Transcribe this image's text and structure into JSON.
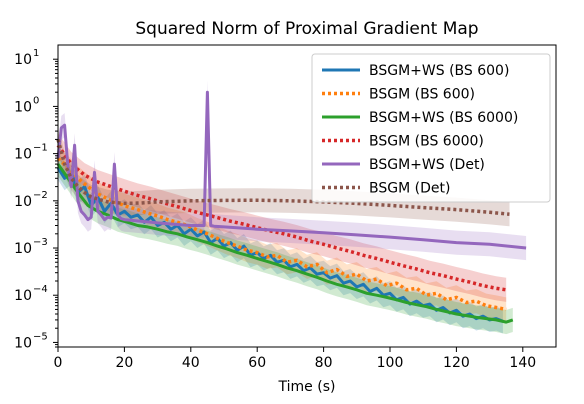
{
  "chart_data": {
    "type": "line",
    "title": "Squared Norm of Proximal Gradient Map",
    "xlabel": "Time (s)",
    "ylabel": "",
    "xlim": [
      0,
      150
    ],
    "ylim": [
      8e-06,
      20
    ],
    "yscale": "log",
    "xticks": [
      0,
      20,
      40,
      60,
      80,
      100,
      120,
      140
    ],
    "xtick_labels": [
      "0",
      "20",
      "40",
      "60",
      "80",
      "100",
      "120",
      "140"
    ],
    "yticks": [
      1e-05,
      0.0001,
      0.001,
      0.01,
      0.1,
      1,
      10
    ],
    "ytick_labels": [
      {
        "base": "10",
        "exp": "−5"
      },
      {
        "base": "10",
        "exp": "−4"
      },
      {
        "base": "10",
        "exp": "−3"
      },
      {
        "base": "10",
        "exp": "−2"
      },
      {
        "base": "10",
        "exp": "−1"
      },
      {
        "base": "10",
        "exp": "0"
      },
      {
        "base": "10",
        "exp": "1"
      }
    ],
    "grid": false,
    "legend": "top-right",
    "series": [
      {
        "name": "BSGM+WS (BS 600)",
        "color": "#1f77b4",
        "style": "solid",
        "x": [
          0,
          2,
          4,
          6,
          8,
          10,
          12,
          14,
          16,
          18,
          20,
          22,
          24,
          26,
          28,
          30,
          32,
          34,
          36,
          38,
          40,
          42,
          44,
          46,
          48,
          50,
          52,
          54,
          56,
          58,
          60,
          62,
          64,
          66,
          68,
          70,
          72,
          74,
          76,
          78,
          80,
          82,
          84,
          86,
          88,
          90,
          92,
          94,
          96,
          98,
          100,
          102,
          104,
          106,
          108,
          110,
          112,
          114,
          116,
          118,
          120,
          122,
          124,
          126,
          128,
          130,
          132,
          134
        ],
        "y": [
          0.05,
          0.03,
          0.04,
          0.015,
          0.02,
          0.008,
          0.012,
          0.006,
          0.009,
          0.005,
          0.006,
          0.0045,
          0.005,
          0.0035,
          0.0045,
          0.003,
          0.0035,
          0.0025,
          0.003,
          0.002,
          0.0025,
          0.0018,
          0.0022,
          0.0013,
          0.0016,
          0.0011,
          0.0013,
          0.0009,
          0.0011,
          0.0007,
          0.0008,
          0.0006,
          0.0007,
          0.0005,
          0.00055,
          0.0004,
          0.00045,
          0.00033,
          0.00038,
          0.00028,
          0.0003,
          0.00023,
          0.00026,
          0.00018,
          0.0002,
          0.00015,
          0.00017,
          0.00012,
          0.00014,
          0.0001,
          0.00011,
          8e-05,
          9e-05,
          6.5e-05,
          7.5e-05,
          6e-05,
          6.5e-05,
          4.8e-05,
          5.5e-05,
          4.2e-05,
          4.8e-05,
          3.6e-05,
          4e-05,
          3.2e-05,
          3.6e-05,
          3e-05,
          3.2e-05,
          2.8e-05
        ]
      },
      {
        "name": "BSGM (BS 600)",
        "color": "#ff7f0e",
        "style": "dotted",
        "x": [
          0,
          3,
          6,
          9,
          12,
          15,
          18,
          21,
          24,
          27,
          30,
          33,
          36,
          39,
          42,
          45,
          48,
          51,
          54,
          57,
          60,
          63,
          66,
          69,
          72,
          75,
          78,
          81,
          84,
          87,
          90,
          93,
          96,
          99,
          102,
          105,
          108,
          111,
          114,
          117,
          120,
          123,
          126,
          129,
          132,
          135
        ],
        "y": [
          0.08,
          0.05,
          0.03,
          0.02,
          0.014,
          0.011,
          0.009,
          0.0075,
          0.0065,
          0.0055,
          0.0048,
          0.004,
          0.0035,
          0.003,
          0.0024,
          0.002,
          0.0016,
          0.0013,
          0.0011,
          0.0009,
          0.0008,
          0.00065,
          0.0007,
          0.0005,
          0.00055,
          0.0004,
          0.00045,
          0.0003,
          0.00035,
          0.00025,
          0.00028,
          0.0002,
          0.00022,
          0.00016,
          0.00018,
          0.00013,
          0.00014,
          0.0001,
          0.00011,
          8e-05,
          9e-05,
          7e-05,
          7.5e-05,
          6e-05,
          5.5e-05,
          5e-05
        ]
      },
      {
        "name": "BSGM+WS (BS 6000)",
        "color": "#2ca02c",
        "style": "solid",
        "x": [
          0,
          3,
          6,
          9,
          12,
          15,
          18,
          21,
          24,
          27,
          30,
          33,
          36,
          39,
          42,
          45,
          48,
          51,
          54,
          57,
          60,
          63,
          66,
          69,
          72,
          75,
          78,
          81,
          84,
          87,
          90,
          93,
          96,
          99,
          102,
          105,
          108,
          111,
          114,
          117,
          120,
          123,
          126,
          129,
          132,
          135,
          137
        ],
        "y": [
          0.06,
          0.03,
          0.015,
          0.008,
          0.006,
          0.005,
          0.004,
          0.0035,
          0.003,
          0.0028,
          0.0025,
          0.0022,
          0.002,
          0.0017,
          0.0015,
          0.0013,
          0.0011,
          0.00095,
          0.0008,
          0.0007,
          0.0006,
          0.00052,
          0.00045,
          0.00038,
          0.00033,
          0.00028,
          0.00024,
          0.0002,
          0.00017,
          0.00015,
          0.00013,
          0.00011,
          0.0001,
          9e-05,
          8e-05,
          7e-05,
          6.3e-05,
          5.7e-05,
          5e-05,
          4.5e-05,
          4e-05,
          3.7e-05,
          3.4e-05,
          3.2e-05,
          3e-05,
          2.7e-05,
          3e-05
        ]
      },
      {
        "name": "BSGM (BS 6000)",
        "color": "#d62728",
        "style": "dotted",
        "x": [
          0,
          4,
          8,
          12,
          16,
          20,
          24,
          28,
          32,
          36,
          40,
          44,
          48,
          52,
          56,
          60,
          64,
          68,
          72,
          76,
          80,
          84,
          88,
          92,
          96,
          100,
          104,
          108,
          112,
          116,
          120,
          124,
          128,
          132,
          135
        ],
        "y": [
          0.15,
          0.06,
          0.035,
          0.025,
          0.02,
          0.016,
          0.013,
          0.011,
          0.009,
          0.0075,
          0.0062,
          0.0052,
          0.0044,
          0.0037,
          0.0032,
          0.0027,
          0.0023,
          0.002,
          0.0017,
          0.0014,
          0.0012,
          0.001,
          0.00085,
          0.0007,
          0.0006,
          0.0005,
          0.00042,
          0.00036,
          0.0003,
          0.00026,
          0.00022,
          0.00019,
          0.00016,
          0.00014,
          0.00013
        ]
      },
      {
        "name": "BSGM+WS (Det)",
        "color": "#9467bd",
        "style": "solid",
        "x": [
          0,
          1,
          2,
          3,
          4,
          5,
          6,
          7,
          8,
          9,
          10,
          11,
          12,
          13,
          14,
          15,
          16,
          17,
          18,
          19,
          20,
          25,
          30,
          35,
          40,
          43,
          44,
          45,
          46,
          47,
          50,
          60,
          70,
          80,
          90,
          100,
          110,
          120,
          130,
          141
        ],
        "y": [
          0.08,
          0.35,
          0.4,
          0.05,
          0.02,
          0.15,
          0.01,
          0.006,
          0.005,
          0.004,
          0.0045,
          0.04,
          0.006,
          0.005,
          0.004,
          0.0045,
          0.0043,
          0.06,
          0.005,
          0.0042,
          0.004,
          0.0037,
          0.0034,
          0.0032,
          0.003,
          0.003,
          0.003,
          2.0,
          0.003,
          0.0029,
          0.0028,
          0.0025,
          0.0023,
          0.0021,
          0.0019,
          0.0017,
          0.0015,
          0.0013,
          0.0012,
          0.001
        ]
      },
      {
        "name": "BSGM (Det)",
        "color": "#8c564b",
        "style": "dotted",
        "x": [
          0,
          2,
          4,
          6,
          8,
          10,
          15,
          20,
          25,
          30,
          40,
          50,
          60,
          70,
          80,
          90,
          100,
          110,
          120,
          130,
          136
        ],
        "y": [
          0.2,
          0.06,
          0.03,
          0.02,
          0.015,
          0.012,
          0.0095,
          0.0088,
          0.009,
          0.0095,
          0.01,
          0.0102,
          0.0103,
          0.01,
          0.0095,
          0.0088,
          0.008,
          0.0072,
          0.0065,
          0.0057,
          0.0052
        ]
      }
    ]
  }
}
